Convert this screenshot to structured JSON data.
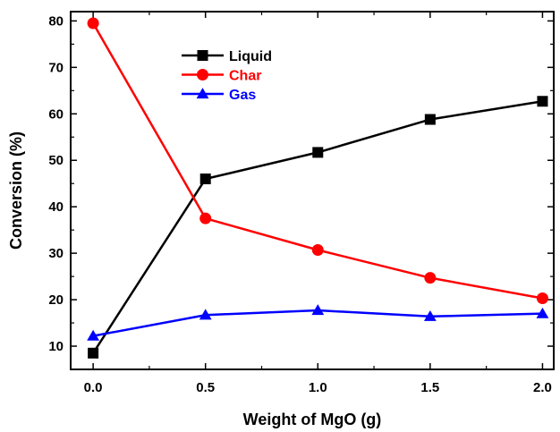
{
  "chart_data": {
    "type": "line",
    "xlabel": "Weight of MgO (g)",
    "ylabel": "Conversion (%)",
    "xlim": [
      -0.1,
      2.05
    ],
    "ylim": [
      5,
      82
    ],
    "xticks": [
      0.0,
      0.5,
      1.0,
      1.5,
      2.0
    ],
    "xtick_labels": [
      "0.0",
      "0.5",
      "1.0",
      "1.5",
      "2.0"
    ],
    "yticks": [
      10,
      20,
      30,
      40,
      50,
      60,
      70,
      80
    ],
    "ytick_labels": [
      "10",
      "20",
      "30",
      "40",
      "50",
      "60",
      "70",
      "80"
    ],
    "grid": false,
    "legend_position": "top-left",
    "x": [
      0.0,
      0.5,
      1.0,
      1.5,
      2.0
    ],
    "series": [
      {
        "name": "Liquid",
        "marker": "square",
        "color": "#000000",
        "values": [
          8.5,
          46.0,
          51.7,
          58.8,
          62.7
        ]
      },
      {
        "name": "Char",
        "marker": "circle",
        "color": "#ff0000",
        "values": [
          79.5,
          37.5,
          30.7,
          24.7,
          20.3
        ]
      },
      {
        "name": "Gas",
        "marker": "triangle",
        "color": "#0000ff",
        "values": [
          12.2,
          16.7,
          17.7,
          16.4,
          17.0
        ]
      }
    ]
  }
}
